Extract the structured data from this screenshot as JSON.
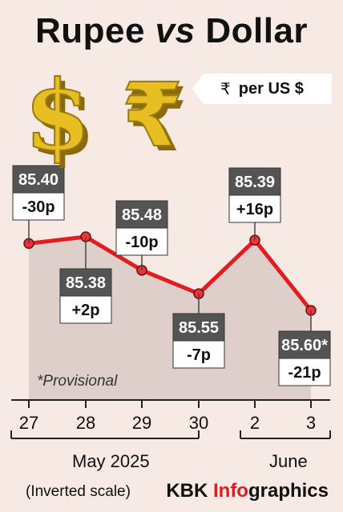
{
  "header": {
    "title_a": "Rupee",
    "title_vs": "vs",
    "title_b": "Dollar",
    "unit_symbol": "₹",
    "unit_text": "per US $"
  },
  "notes": {
    "provisional": "*Provisional",
    "scale": "(Inverted scale)",
    "month_1": "May 2025",
    "month_2": "June"
  },
  "credit": {
    "brand": "KBK",
    "info": "Info",
    "graphics": "graphics"
  },
  "icons": [
    "dollar-sign-icon",
    "rupee-sign-icon"
  ],
  "chart_data": {
    "type": "line",
    "categories": [
      "27",
      "28",
      "29",
      "30",
      "2",
      "3"
    ],
    "values": [
      85.4,
      85.38,
      85.48,
      85.55,
      85.39,
      85.6
    ],
    "value_labels": [
      "85.40",
      "85.38",
      "85.48",
      "85.55",
      "85.39",
      "85.60*"
    ],
    "change_labels": [
      "-30p",
      "+2p",
      "-10p",
      "-7p",
      "+16p",
      "-21p"
    ],
    "inverted_y": true,
    "colors": {
      "line": "#e11d21",
      "marker_fill": "#e8343a",
      "area": "#d9cac5",
      "value_box": "#545454",
      "change_box": "#ffffff"
    }
  }
}
